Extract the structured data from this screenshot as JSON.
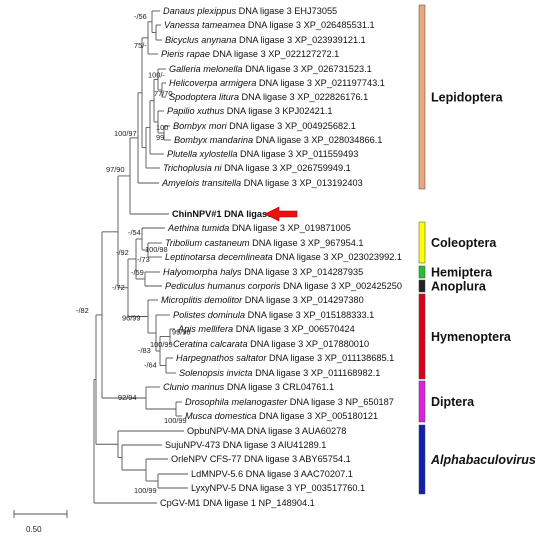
{
  "leaves": [
    {
      "genus": "Danaus plexippus",
      "rest": " DNA ligase 3 EHJ73055",
      "italic": true
    },
    {
      "genus": "Vanessa tameamea",
      "rest": " DNA ligase 3 XP_026485531.1",
      "italic": true
    },
    {
      "genus": "Bicyclus anynana",
      "rest": " DNA ligase 3 XP_023939121.1",
      "italic": true
    },
    {
      "genus": "Pieris rapae",
      "rest": " DNA ligase 3 XP_022127272.1",
      "italic": true
    },
    {
      "genus": "Galleria melonella",
      "rest": " DNA ligase 3 XP_026731523.1",
      "italic": true
    },
    {
      "genus": "Helicoverpa armigera",
      "rest": " DNA ligase 3 XP_021197743.1",
      "italic": true
    },
    {
      "genus": "Spodoptera litura",
      "rest": " DNA ligase 3 XP_022826176.1",
      "italic": true
    },
    {
      "genus": "Papilio xuthus",
      "rest": " DNA ligase 3 KPJ02421.1",
      "italic": true
    },
    {
      "genus": "Bombyx mori",
      "rest": " DNA ligase 3 XP_004925682.1",
      "italic": true
    },
    {
      "genus": "Bombyx mandarina",
      "rest": " DNA ligase 3 XP_028034866.1",
      "italic": true
    },
    {
      "genus": "Plutella xylostella",
      "rest": " DNA ligase 3 XP_011559493",
      "italic": true
    },
    {
      "genus": "Trichoplusia ni",
      "rest": " DNA ligase 3 XP_026759949.1",
      "italic": true
    },
    {
      "genus": "Amyelois transitella",
      "rest": " DNA ligase 3 XP_013192403",
      "italic": true
    },
    {
      "genus": "ChinNPV#1 DNA ligase 3",
      "rest": "",
      "italic": false,
      "highlight": true
    },
    {
      "genus": "Aethina tumida",
      "rest": " DNA ligase 3 XP_019871005",
      "italic": true
    },
    {
      "genus": "Tribolium castaneum",
      "rest": " DNA ligase 3 XP_967954.1",
      "italic": true
    },
    {
      "genus": "Leptinotarsa decemlineata",
      "rest": " DNA ligase 3 XP_023023992.1",
      "italic": true
    },
    {
      "genus": "Halyomorpha halys",
      "rest": " DNA ligase 3 XP_014287935",
      "italic": true
    },
    {
      "genus": "Pediculus humanus corporis",
      "rest": " DNA ligase 3 XP_002425250",
      "italic": true
    },
    {
      "genus": "Microplitis demolitor",
      "rest": " DNA ligase 3 XP_014297380",
      "italic": true
    },
    {
      "genus": "Polistes dominula",
      "rest": " DNA ligase 3 XP_015188333.1",
      "italic": true
    },
    {
      "genus": "Apis mellifera",
      "rest": " DNA ligase 3 XP_006570424",
      "italic": true
    },
    {
      "genus": "Ceratina calcarata",
      "rest": " DNA ligase 3 XP_017880010",
      "italic": true
    },
    {
      "genus": "Harpegnathos saltator",
      "rest": " DNA ligase 3 XP_011138685.1",
      "italic": true
    },
    {
      "genus": "Solenopsis invicta",
      "rest": " DNA ligase 3 XP_011168982.1",
      "italic": true
    },
    {
      "genus": "Clunio marinus",
      "rest": " DNA ligase 3 CRL04761.1",
      "italic": true
    },
    {
      "genus": "Drosophila melanogaster",
      "rest": " DNA ligase 3 NP_650187",
      "italic": true
    },
    {
      "genus": "Musca domestica",
      "rest": " DNA ligase 3 XP_005180121",
      "italic": true
    },
    {
      "genus": "OpbuNPV-MA DNA ligase 3 AUA60278",
      "rest": "",
      "italic": false
    },
    {
      "genus": "SujuNPV-473 DNA ligase 3 AIU41289.1",
      "rest": "",
      "italic": false
    },
    {
      "genus": "OrleNPV CFS-77 DNA ligase 3 ABY65754.1",
      "rest": "",
      "italic": false
    },
    {
      "genus": "LdMNPV-5.6 DNA ligase 3 AAC70207.1",
      "rest": "",
      "italic": false
    },
    {
      "genus": "LyxyNPV-5 DNA ligase 3 YP_003517760.1",
      "rest": "",
      "italic": false
    },
    {
      "genus": "CpGV-M1 DNA ligase 1 NP_148904.1",
      "rest": "",
      "italic": false
    }
  ],
  "supports": [
    "-/56",
    "75/-",
    "100/-",
    "77/70",
    "100",
    "99",
    "100/97",
    "97/90",
    "-/54",
    "100/98",
    "-/92",
    "-/59",
    "-/73",
    "-/72",
    "96/99",
    "-/83",
    "99/98",
    "-/64",
    "100/99",
    "-/82",
    "92/94",
    "100/99",
    "100/99"
  ],
  "groups": [
    {
      "name": "Lepidoptera",
      "color": "#e8a77c",
      "italic": false
    },
    {
      "name": "Coleoptera",
      "color": "#ffff00",
      "italic": false
    },
    {
      "name": "Hemiptera",
      "color": "#22c02a",
      "italic": false
    },
    {
      "name": "Anoplura",
      "color": "#222222",
      "italic": false
    },
    {
      "name": "Hymenoptera",
      "color": "#dd0018",
      "italic": false
    },
    {
      "name": "Diptera",
      "color": "#dd22dd",
      "italic": false
    },
    {
      "name": "Alphabaculovirus",
      "color": "#1020b0",
      "italic": true
    }
  ],
  "highlight_color": "#ee1111",
  "scale_label": "0.50"
}
